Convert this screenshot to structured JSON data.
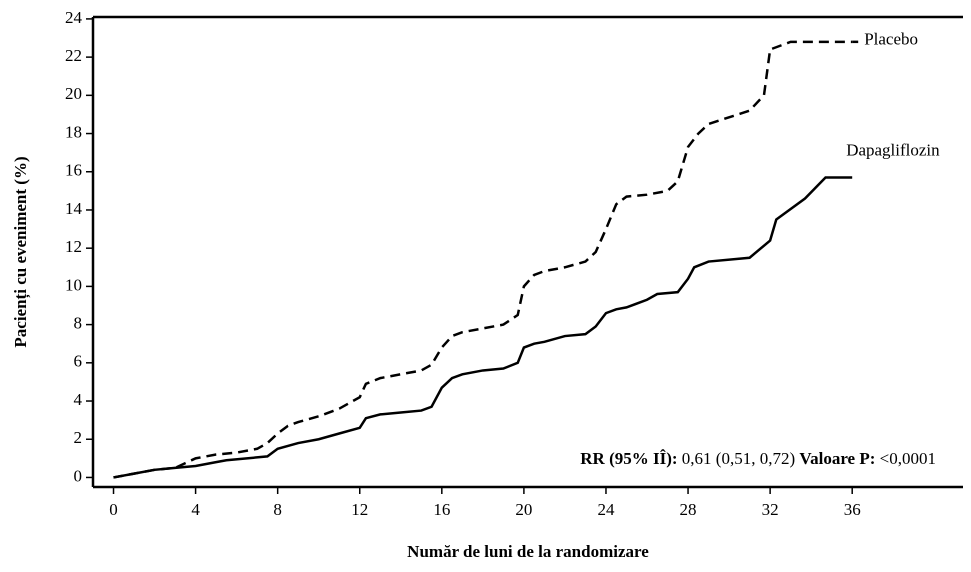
{
  "chart_data": {
    "type": "line",
    "x_label": "Număr de luni de la randomizare",
    "y_label": "Pacienți cu eveniment (%)",
    "xlim": [
      -1,
      41.4
    ],
    "ylim": [
      -0.5,
      24.1
    ],
    "xticks": [
      0,
      4,
      8,
      12,
      16,
      20,
      24,
      28,
      32,
      36
    ],
    "yticks": [
      0,
      2,
      4,
      6,
      8,
      10,
      12,
      14,
      16,
      18,
      20,
      22,
      24
    ],
    "series": [
      {
        "name": "Placebo",
        "color": "#000000",
        "dashed": true,
        "x": [
          0,
          1,
          2,
          3,
          4,
          5,
          6,
          7,
          7.5,
          8,
          8.5,
          9,
          10,
          11,
          12,
          12.3,
          13,
          14,
          15,
          15.5,
          16,
          16.5,
          17,
          18,
          19,
          19.7,
          20,
          20.5,
          21,
          22,
          23,
          23.5,
          24,
          24.5,
          25,
          26,
          27,
          27.5,
          28,
          28.5,
          29,
          31,
          31.7,
          32,
          33,
          36
        ],
        "values": [
          0,
          0.2,
          0.4,
          0.5,
          1.0,
          1.2,
          1.3,
          1.5,
          1.8,
          2.3,
          2.7,
          2.9,
          3.2,
          3.6,
          4.2,
          4.9,
          5.2,
          5.4,
          5.6,
          5.9,
          6.8,
          7.4,
          7.6,
          7.8,
          8.0,
          8.5,
          10.0,
          10.6,
          10.8,
          11.0,
          11.3,
          11.8,
          13.0,
          14.3,
          14.7,
          14.8,
          15.0,
          15.5,
          17.3,
          18.0,
          18.5,
          19.2,
          20.0,
          22.4,
          22.8,
          22.8
        ]
      },
      {
        "name": "Dapagliflozin",
        "color": "#000000",
        "dashed": false,
        "x": [
          0,
          1,
          2,
          3,
          4,
          5,
          5.5,
          7.5,
          8,
          9,
          10,
          11,
          12,
          12.3,
          13,
          14,
          15,
          15.5,
          16,
          16.5,
          17,
          18,
          19,
          19.7,
          20,
          20.5,
          21,
          22,
          23,
          23.5,
          24,
          24.5,
          25,
          26,
          26.5,
          27.5,
          28,
          28.3,
          29,
          31,
          32,
          32.3,
          33.7,
          34.7,
          36
        ],
        "values": [
          0,
          0.2,
          0.4,
          0.5,
          0.6,
          0.8,
          0.9,
          1.1,
          1.5,
          1.8,
          2.0,
          2.3,
          2.6,
          3.1,
          3.3,
          3.4,
          3.5,
          3.7,
          4.7,
          5.2,
          5.4,
          5.6,
          5.7,
          6.0,
          6.8,
          7.0,
          7.1,
          7.4,
          7.5,
          7.9,
          8.6,
          8.8,
          8.9,
          9.3,
          9.6,
          9.7,
          10.4,
          11.0,
          11.3,
          11.5,
          12.4,
          13.5,
          14.6,
          15.7,
          15.7
        ]
      }
    ],
    "annotation": [
      {
        "text": "RR (95% IÎ):",
        "bold": true
      },
      {
        "text": "0,61 (0,51, 0,72)",
        "bold": false
      },
      {
        "text": "Valoare P:",
        "bold": true
      },
      {
        "text": "<0,0001",
        "bold": false
      }
    ]
  }
}
